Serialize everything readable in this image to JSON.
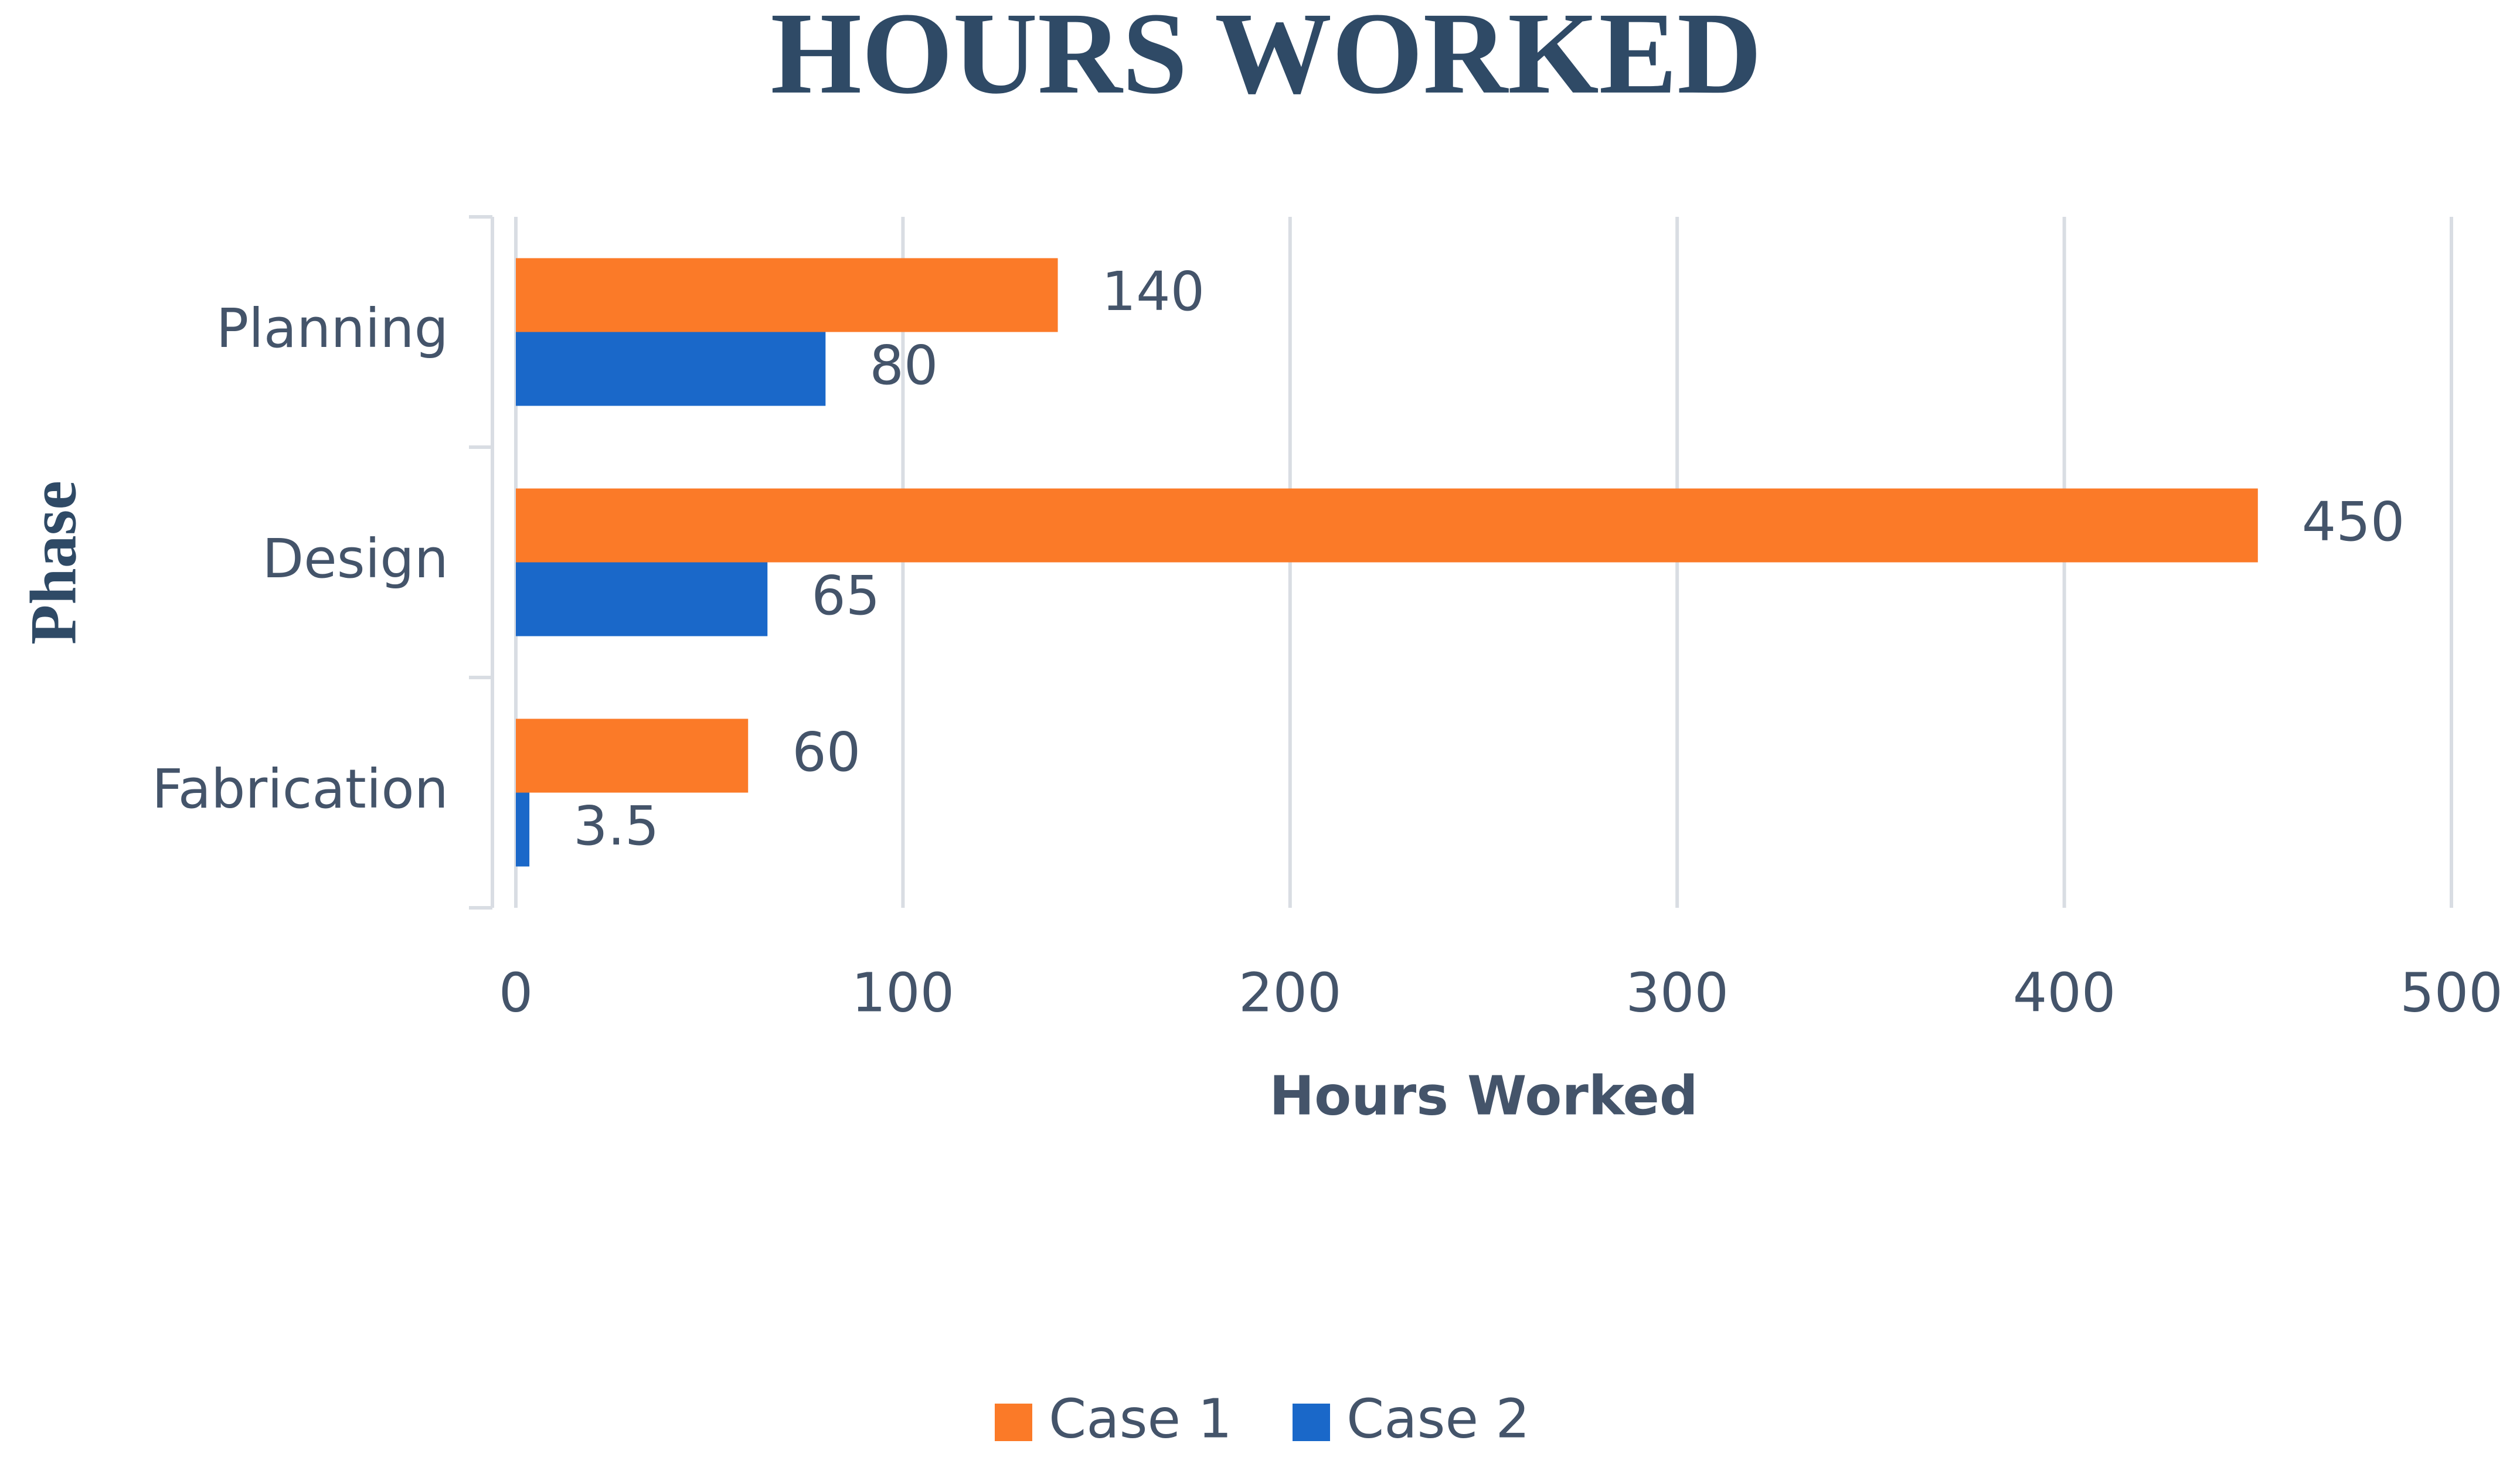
{
  "chart_data": {
    "type": "hbar",
    "title": "HOURS WORKED",
    "x_label": "Hours Worked",
    "y_label": "Phase",
    "categories": [
      "Planning",
      "Design",
      "Fabrication"
    ],
    "series": [
      {
        "name": "Case 1",
        "color": "#fb7a28",
        "values": [
          140,
          450,
          60
        ]
      },
      {
        "name": "Case 2",
        "color": "#1a68c9",
        "values": [
          80,
          65,
          3.5
        ]
      }
    ],
    "xlim": [
      0,
      500
    ],
    "xticks": [
      0,
      100,
      200,
      300,
      400,
      500
    ],
    "grid": true,
    "legend": "bottom"
  }
}
